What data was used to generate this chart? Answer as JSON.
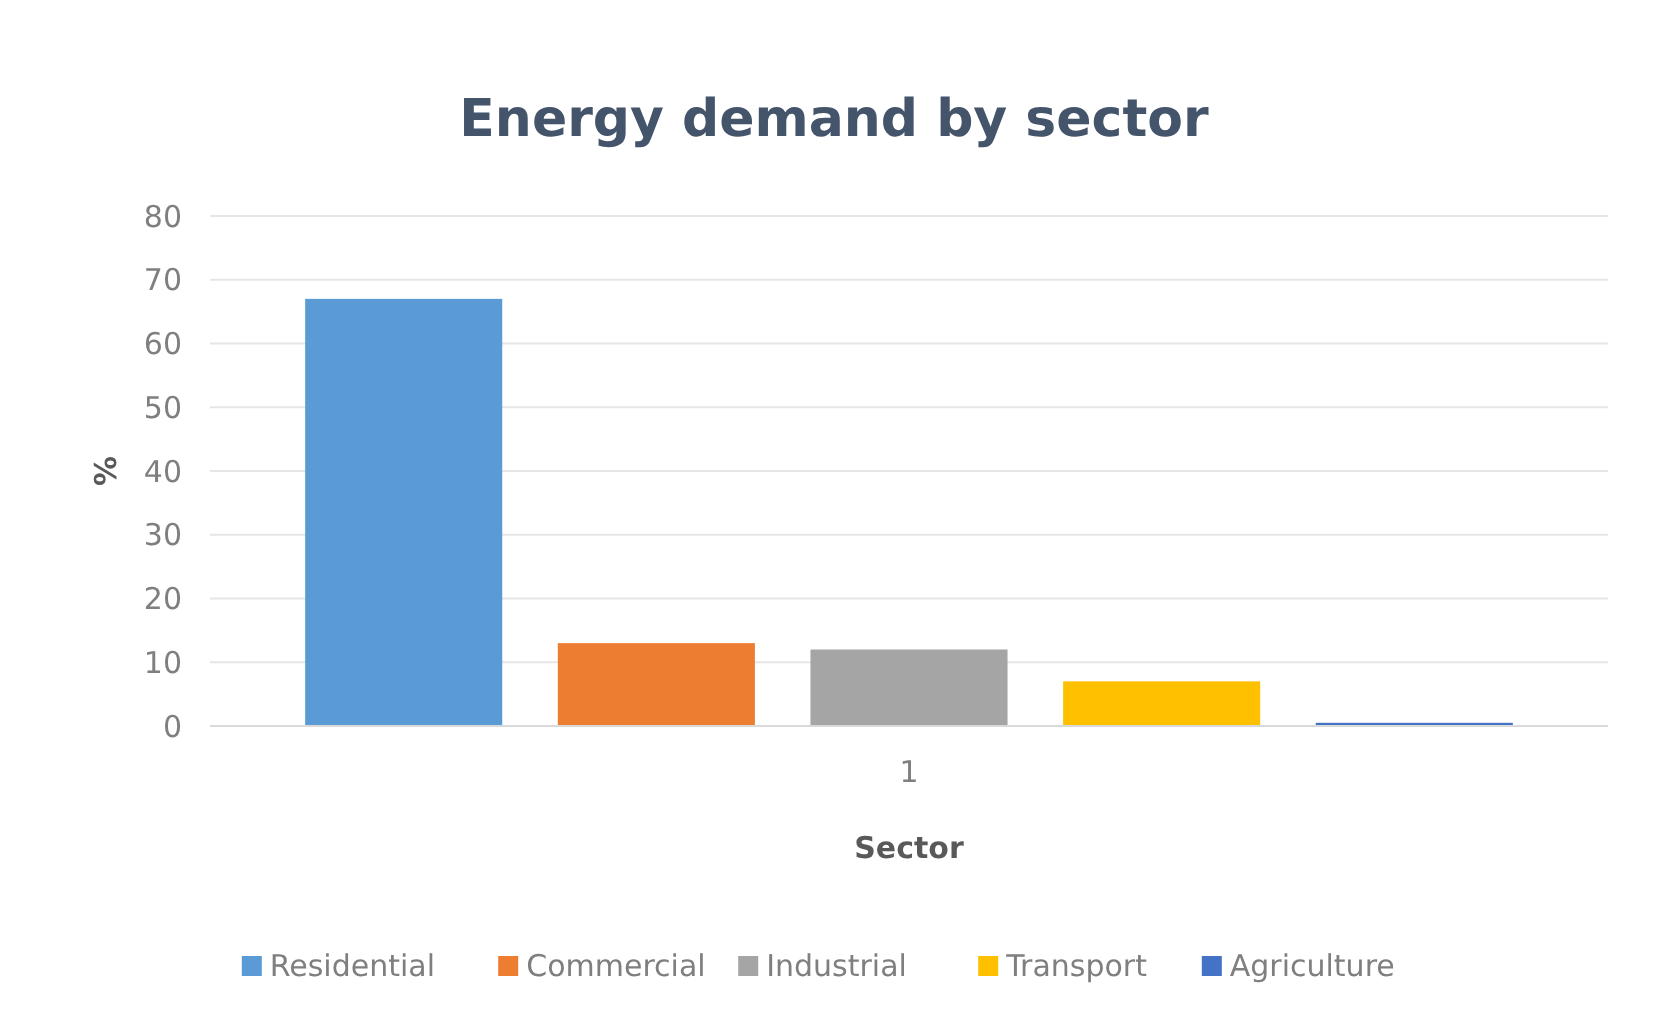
{
  "chart_data": {
    "type": "bar",
    "title": "Energy demand by sector",
    "xlabel": "Sector",
    "ylabel": "%",
    "categories": [
      "1"
    ],
    "series": [
      {
        "name": "Residential",
        "color": "#5b9bd5",
        "values": [
          67
        ]
      },
      {
        "name": "Commercial",
        "color": "#ed7d31",
        "values": [
          13
        ]
      },
      {
        "name": "Industrial",
        "color": "#a5a5a5",
        "values": [
          12
        ]
      },
      {
        "name": "Transport",
        "color": "#ffc000",
        "values": [
          7
        ]
      },
      {
        "name": "Agriculture",
        "color": "#4472c4",
        "values": [
          0.5
        ]
      }
    ],
    "ylim": [
      0,
      80
    ],
    "yticks": [
      0,
      10,
      20,
      30,
      40,
      50,
      60,
      70,
      80
    ],
    "grid": "y",
    "legend": "bottom"
  }
}
